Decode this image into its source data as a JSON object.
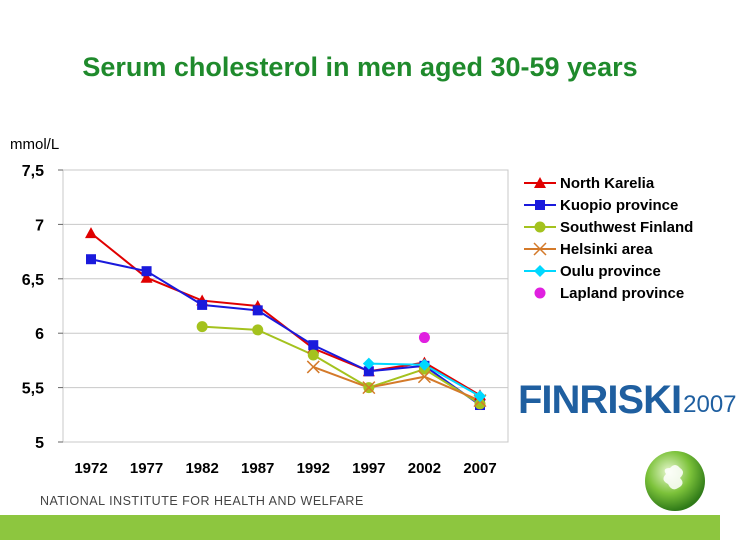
{
  "title": "Serum cholesterol in men aged 30-59 years",
  "unit_label": "mmol/L",
  "footer_text": "NATIONAL INSTITUTE FOR HEALTH AND WELFARE",
  "logo": {
    "main": "FINRISKI",
    "year": "2007"
  },
  "colors": {
    "title": "#1f8a2c",
    "footer_bar": "#8dc63f",
    "logo": "#1f5fa0"
  },
  "chart_data": {
    "type": "line",
    "title": "Serum cholesterol in men aged 30-59 years",
    "ylabel": "mmol/L",
    "x": [
      1972,
      1977,
      1982,
      1987,
      1992,
      1997,
      2002,
      2007
    ],
    "ylim": [
      5,
      7.5
    ],
    "y_ticks": [
      "7,5",
      "7",
      "6,5",
      "6",
      "5,5",
      "5"
    ],
    "y_tick_values": [
      7.5,
      7.0,
      6.5,
      6.0,
      5.5,
      5.0
    ],
    "x_ticks": [
      "1972",
      "1977",
      "1982",
      "1987",
      "1992",
      "1997",
      "2002",
      "2007"
    ],
    "grid": true,
    "legend": "right",
    "series": [
      {
        "name": "North Karelia",
        "color": "#e00000",
        "marker": "triangle",
        "values": [
          6.92,
          6.51,
          6.3,
          6.25,
          5.86,
          5.65,
          5.73,
          5.43
        ]
      },
      {
        "name": "Kuopio province",
        "color": "#1a1adc",
        "marker": "square",
        "values": [
          6.68,
          6.57,
          6.26,
          6.21,
          5.89,
          5.65,
          5.7,
          5.34
        ]
      },
      {
        "name": "Southwest Finland",
        "color": "#a4c21e",
        "marker": "circle",
        "values": [
          null,
          null,
          6.06,
          6.03,
          5.8,
          5.5,
          5.67,
          5.35
        ]
      },
      {
        "name": "Helsinki area",
        "color": "#d47a2a",
        "marker": "x",
        "values": [
          null,
          null,
          null,
          null,
          5.69,
          5.5,
          5.6,
          5.38
        ]
      },
      {
        "name": "Oulu province",
        "color": "#00d8ff",
        "marker": "diamond",
        "values": [
          null,
          null,
          null,
          null,
          null,
          5.72,
          5.71,
          5.42
        ]
      },
      {
        "name": "Lapland province",
        "color": "#e020e0",
        "marker": "circle",
        "values": [
          null,
          null,
          null,
          null,
          null,
          null,
          5.96,
          null
        ]
      }
    ]
  }
}
